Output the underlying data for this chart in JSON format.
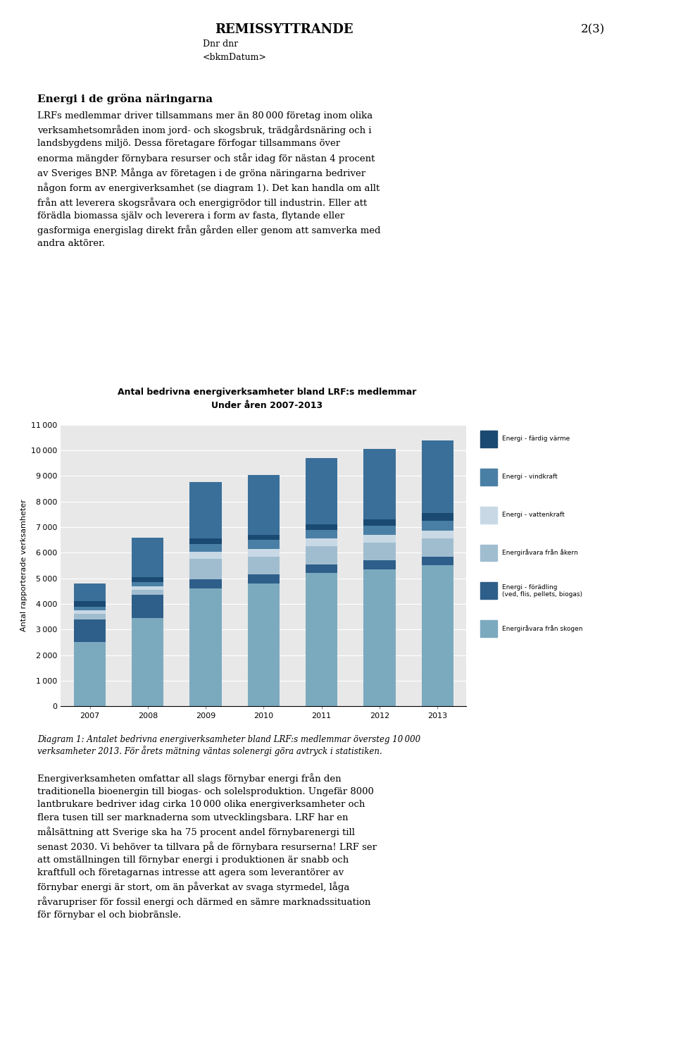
{
  "title_line1": "Antal bedrivna energiverksamheter bland LRF:s medlemmar",
  "title_line2": "Under åren 2007-2013",
  "ylabel": "Antal rapporterade verksamheter",
  "years": [
    2007,
    2008,
    2009,
    2010,
    2011,
    2012,
    2013
  ],
  "segment_keys": [
    "Energiråvara från skogen",
    "Energi - förädling (ved, flis, pellets, biogas)",
    "Energiråvara från åkern",
    "Energi - vattenkraft",
    "Energi - vindkraft",
    "Energi - färdig värme",
    "top_segment"
  ],
  "segment_colors": [
    "#7baabf",
    "#2e5f8a",
    "#a0bdd0",
    "#c8d9e5",
    "#4a7fa5",
    "#1a4a72",
    "#3a6f9a"
  ],
  "data": {
    "Energiråvara från skogen": [
      2500,
      3450,
      4600,
      4800,
      5200,
      5350,
      5500
    ],
    "Energi - förädling (ved, flis, pellets, biogas)": [
      900,
      900,
      350,
      350,
      350,
      350,
      350
    ],
    "Energiråvara från åkern": [
      200,
      200,
      800,
      700,
      700,
      700,
      700
    ],
    "Energi - vattenkraft": [
      150,
      150,
      300,
      300,
      300,
      300,
      300
    ],
    "Energi - vindkraft": [
      150,
      150,
      300,
      350,
      350,
      350,
      400
    ],
    "Energi - färdig värme": [
      200,
      200,
      200,
      200,
      200,
      250,
      300
    ],
    "top_segment": [
      700,
      1550,
      2200,
      2350,
      2600,
      2750,
      2850
    ]
  },
  "legend_labels": [
    "Energi - färdig värme",
    "Energi - vindkraft",
    "Energi - vattenkraft",
    "Energiråvara från åkern",
    "Energi - förädling\n(ved, flis, pellets, biogas)",
    "Energiråvara från skogen"
  ],
  "legend_colors": [
    "#1a4a72",
    "#4a7fa5",
    "#c8d9e5",
    "#a0bdd0",
    "#2e5f8a",
    "#7baabf"
  ],
  "ylim": [
    0,
    11000
  ],
  "yticks": [
    0,
    1000,
    2000,
    3000,
    4000,
    5000,
    6000,
    7000,
    8000,
    9000,
    10000,
    11000
  ],
  "plot_bg": "#e8e8e8",
  "grid_color": "#ffffff",
  "figwidth": 9.6,
  "figheight": 15.07,
  "header_title": "REMISSYTTRANDE",
  "header_page": "2(3)",
  "header_dnr": "Dnr dnr",
  "header_date": "<bkmDatum>",
  "section_heading": "Energi i de gröna näringarna",
  "body_text1": "LRFs medlemmar driver tillsammans mer än 80 000 företag inom olika\nverksamhetsområden inom jord- och skogsbruk, trädgårdsnäring och i\nlandsbygdens miljö. Dessa företagare förfogar tillsammans över\nenorma mängder förnybara resurser och står idag för nästan 4 procent\nav Sveriges BNP. Många av företagen i de gröna näringarna bedriver\nnågon form av energiverksamhet (se diagram 1). Det kan handla om allt\nfrån att leverera skogsråvara och energigrödor till industrin. Eller att\nförädla biomassa själv och leverera i form av fasta, flytande eller\ngasformiga energislag direkt från gården eller genom att samverka med\nandra aktörer.",
  "caption": "Diagram 1: Antalet bedrivna energiverksamheter bland LRF:s medlemmar översteg 10 000\nverksamheter 2013. För årets mätning väntas solenergi göra avtryck i statistiken.",
  "body_text2": "Energiverksamheten omfattar all slags förnybar energi från den\ntraditionella bioenergin till biogas- och solelsproduktion. Ungefär 8000\nlantbrukare bedriver idag cirka 10 000 olika energiverksamheter och\nflera tusen till ser marknaderna som utvecklingsbara. LRF har en\nmålsättning att Sverige ska ha 75 procent andel förnybarenergi till\nsenast 2030. Vi behöver ta tillvara på de förnybara resurserna! LRF ser\natt omställningen till förnybar energi i produktionen är snabb och\nkraftfull och företagarnas intresse att agera som leverantörer av\nförnybar energi är stort, om än påverkat av svaga styrmedel, låga\nråvarupriser för fossil energi och därmed en sämre marknadssituation\nför förnybar el och biobränsle."
}
